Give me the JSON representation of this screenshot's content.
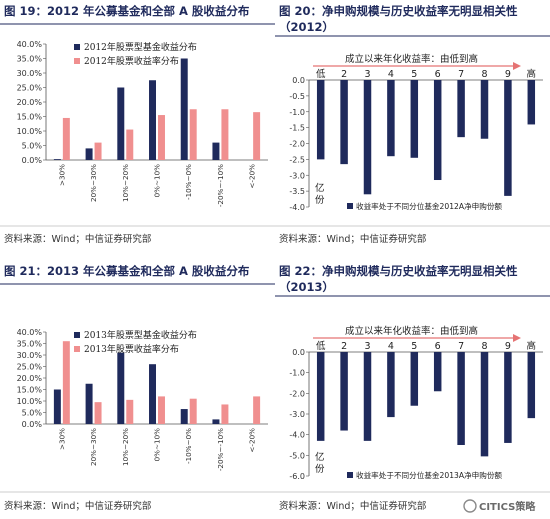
{
  "panels": [
    {
      "id": "p1",
      "title": "图 19：2012 年公募基金和全部 A 股收益分布",
      "source": "资料来源：Wind；中信证券研究部"
    },
    {
      "id": "p2",
      "title_line1": "图  20：净申购规模与历史收益率无明显相关性",
      "title_line2": "（2012）",
      "source": "资料来源：Wind；中信证券研究部"
    },
    {
      "id": "p3",
      "title": "图 21：2013 年公募基金和全部 A 股收益分布",
      "source": "资料来源：Wind；中信证券研究部"
    },
    {
      "id": "p4",
      "title_line1": "图  22：净申购规模与历史收益率无明显相关性",
      "title_line2": "（2013）",
      "source": "资料来源：Wind；中信证券研究部"
    }
  ],
  "watermark": "CITICS策略",
  "colors": {
    "navy": "#1f2a5c",
    "pink": "#f08f8f",
    "arrow": "#e57373"
  },
  "chart_data": [
    {
      "type": "bar",
      "categories": [
        ">30%",
        "20%~30%",
        "10%~20%",
        "0%~10%",
        "-10%~0%",
        "-20%~-10%",
        "<-20%"
      ],
      "series": [
        {
          "name": "2012年股票型基金收益分布",
          "values": [
            0.3,
            4.0,
            25.0,
            27.5,
            35.0,
            6.0,
            0.0
          ]
        },
        {
          "name": "2012年股票收益率分布",
          "values": [
            14.5,
            6.0,
            10.5,
            15.5,
            17.5,
            17.5,
            16.5
          ]
        }
      ],
      "yticks": [
        "0.0%",
        "5.0%",
        "10.0%",
        "15.0%",
        "20.0%",
        "25.0%",
        "30.0%",
        "35.0%",
        "40.0%"
      ],
      "ylim": [
        0,
        40
      ],
      "legend_position": "top-left",
      "grid": false
    },
    {
      "type": "bar",
      "categories": [
        "低",
        "2",
        "3",
        "4",
        "5",
        "6",
        "7",
        "8",
        "9",
        "高"
      ],
      "values": [
        -2.5,
        -2.65,
        -3.6,
        -2.4,
        -2.45,
        -3.15,
        -1.8,
        -1.85,
        -3.65,
        -1.4
      ],
      "yticks": [
        "0.0",
        "-0.5",
        "-1.0",
        "-1.5",
        "-2.0",
        "-2.5",
        "-3.0",
        "-3.5",
        "-4.0"
      ],
      "ylim": [
        -4.0,
        0
      ],
      "arrow_label": "成立以来年化收益率：由低到高",
      "unit_label_line1": "亿",
      "unit_label_line2": "份",
      "series_name": "收益率处于不同分位基金2012A净申购份额",
      "legend_position": "bottom",
      "grid": false
    },
    {
      "type": "bar",
      "categories": [
        ">30%",
        "20%~30%",
        "10%~20%",
        "0%~10%",
        "-10%~0%",
        "-20%~-10%",
        "<-20%"
      ],
      "series": [
        {
          "name": "2013年股票型基金收益分布",
          "values": [
            15.0,
            17.5,
            31.0,
            26.0,
            6.5,
            2.0,
            0.0
          ]
        },
        {
          "name": "2013年股票收益率分布",
          "values": [
            36.0,
            9.5,
            10.5,
            12.0,
            11.0,
            8.5,
            12.0
          ]
        }
      ],
      "yticks": [
        "0.0%",
        "5.0%",
        "10.0%",
        "15.0%",
        "20.0%",
        "25.0%",
        "30.0%",
        "35.0%",
        "40.0%"
      ],
      "ylim": [
        0,
        40
      ],
      "legend_position": "top-left",
      "grid": false
    },
    {
      "type": "bar",
      "categories": [
        "低",
        "2",
        "3",
        "4",
        "5",
        "6",
        "7",
        "8",
        "9",
        "高"
      ],
      "values": [
        -4.3,
        -3.8,
        -4.3,
        -3.15,
        -2.6,
        -1.9,
        -4.5,
        -5.05,
        -4.4,
        -3.2
      ],
      "yticks": [
        "0.0",
        "-1.0",
        "-2.0",
        "-3.0",
        "-4.0",
        "-5.0",
        "-6.0"
      ],
      "ylim": [
        -6.0,
        0
      ],
      "arrow_label": "成立以来年化收益率：由低到高",
      "unit_label_line1": "亿",
      "unit_label_line2": "份",
      "series_name": "收益率处于不同分位基金2013A净申购份额",
      "legend_position": "bottom",
      "grid": false
    }
  ]
}
